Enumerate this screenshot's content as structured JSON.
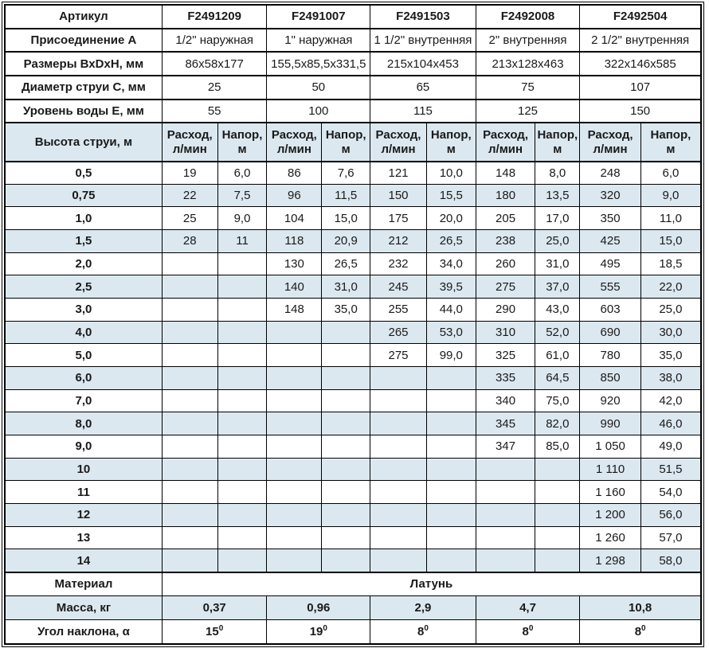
{
  "colors": {
    "accent_blue": "#0b41ad",
    "row_alt": "#dbe8ef",
    "border": "#000000",
    "text": "#1a1a1a"
  },
  "table": {
    "info_rows": [
      {
        "label": "Артикул",
        "type": "article",
        "values": [
          "F2491209",
          "F2491007",
          "F2491503",
          "F2492008",
          "F2492504"
        ]
      },
      {
        "label": "Присоединение А",
        "values": [
          "1/2\" наружная",
          "1\" наружная",
          "1 1/2\" внутренняя",
          "2\" внутренняя",
          "2 1/2\" внутренняя"
        ]
      },
      {
        "label": "Размеры ВхDхН, мм",
        "values": [
          "86x58x177",
          "155,5x85,5x331,5",
          "215x104x453",
          "213x128x463",
          "322x146x585"
        ]
      },
      {
        "label": "Диаметр струи С, мм",
        "values": [
          "25",
          "50",
          "65",
          "75",
          "107"
        ]
      },
      {
        "label": "Уровень воды Е, мм",
        "values": [
          "55",
          "100",
          "115",
          "125",
          "150"
        ]
      }
    ],
    "spec_header": {
      "label": "Высота струи, м",
      "flow": "Расход,\nл/мин",
      "head": "Напор,\nм"
    },
    "data_rows": [
      {
        "h": "0,5",
        "values": [
          "19",
          "6,0",
          "86",
          "7,6",
          "121",
          "10,0",
          "148",
          "8,0",
          "248",
          "6,0"
        ]
      },
      {
        "h": "0,75",
        "values": [
          "22",
          "7,5",
          "96",
          "11,5",
          "150",
          "15,5",
          "180",
          "13,5",
          "320",
          "9,0"
        ]
      },
      {
        "h": "1,0",
        "values": [
          "25",
          "9,0",
          "104",
          "15,0",
          "175",
          "20,0",
          "205",
          "17,0",
          "350",
          "11,0"
        ]
      },
      {
        "h": "1,5",
        "values": [
          "28",
          "11",
          "118",
          "20,9",
          "212",
          "26,5",
          "238",
          "25,0",
          "425",
          "15,0"
        ]
      },
      {
        "h": "2,0",
        "values": [
          "",
          "",
          "130",
          "26,5",
          "232",
          "34,0",
          "260",
          "31,0",
          "495",
          "18,5"
        ]
      },
      {
        "h": "2,5",
        "values": [
          "",
          "",
          "140",
          "31,0",
          "245",
          "39,5",
          "275",
          "37,0",
          "555",
          "22,0"
        ]
      },
      {
        "h": "3,0",
        "values": [
          "",
          "",
          "148",
          "35,0",
          "255",
          "44,0",
          "290",
          "43,0",
          "603",
          "25,0"
        ]
      },
      {
        "h": "4,0",
        "values": [
          "",
          "",
          "",
          "",
          "265",
          "53,0",
          "310",
          "52,0",
          "690",
          "30,0"
        ]
      },
      {
        "h": "5,0",
        "values": [
          "",
          "",
          "",
          "",
          "275",
          "99,0",
          "325",
          "61,0",
          "780",
          "35,0"
        ]
      },
      {
        "h": "6,0",
        "values": [
          "",
          "",
          "",
          "",
          "",
          "",
          "335",
          "64,5",
          "850",
          "38,0"
        ]
      },
      {
        "h": "7,0",
        "values": [
          "",
          "",
          "",
          "",
          "",
          "",
          "340",
          "75,0",
          "920",
          "42,0"
        ]
      },
      {
        "h": "8,0",
        "values": [
          "",
          "",
          "",
          "",
          "",
          "",
          "345",
          "82,0",
          "990",
          "46,0"
        ]
      },
      {
        "h": "9,0",
        "values": [
          "",
          "",
          "",
          "",
          "",
          "",
          "347",
          "85,0",
          "1 050",
          "49,0"
        ]
      },
      {
        "h": "10",
        "values": [
          "",
          "",
          "",
          "",
          "",
          "",
          "",
          "",
          "1 110",
          "51,5"
        ]
      },
      {
        "h": "11",
        "values": [
          "",
          "",
          "",
          "",
          "",
          "",
          "",
          "",
          "1 160",
          "54,0"
        ]
      },
      {
        "h": "12",
        "values": [
          "",
          "",
          "",
          "",
          "",
          "",
          "",
          "",
          "1 200",
          "56,0"
        ]
      },
      {
        "h": "13",
        "values": [
          "",
          "",
          "",
          "",
          "",
          "",
          "",
          "",
          "1 260",
          "57,0"
        ]
      },
      {
        "h": "14",
        "values": [
          "",
          "",
          "",
          "",
          "",
          "",
          "",
          "",
          "1 298",
          "58,0"
        ]
      }
    ],
    "material": {
      "label": "Материал",
      "value": "Латунь"
    },
    "mass": {
      "label": "Масса, кг",
      "values": [
        "0,37",
        "0,96",
        "2,9",
        "4,7",
        "10,8"
      ]
    },
    "angle": {
      "label": "Угол наклона, α",
      "values": [
        "15",
        "19",
        "8",
        "8",
        "8"
      ],
      "sup": "0"
    }
  }
}
